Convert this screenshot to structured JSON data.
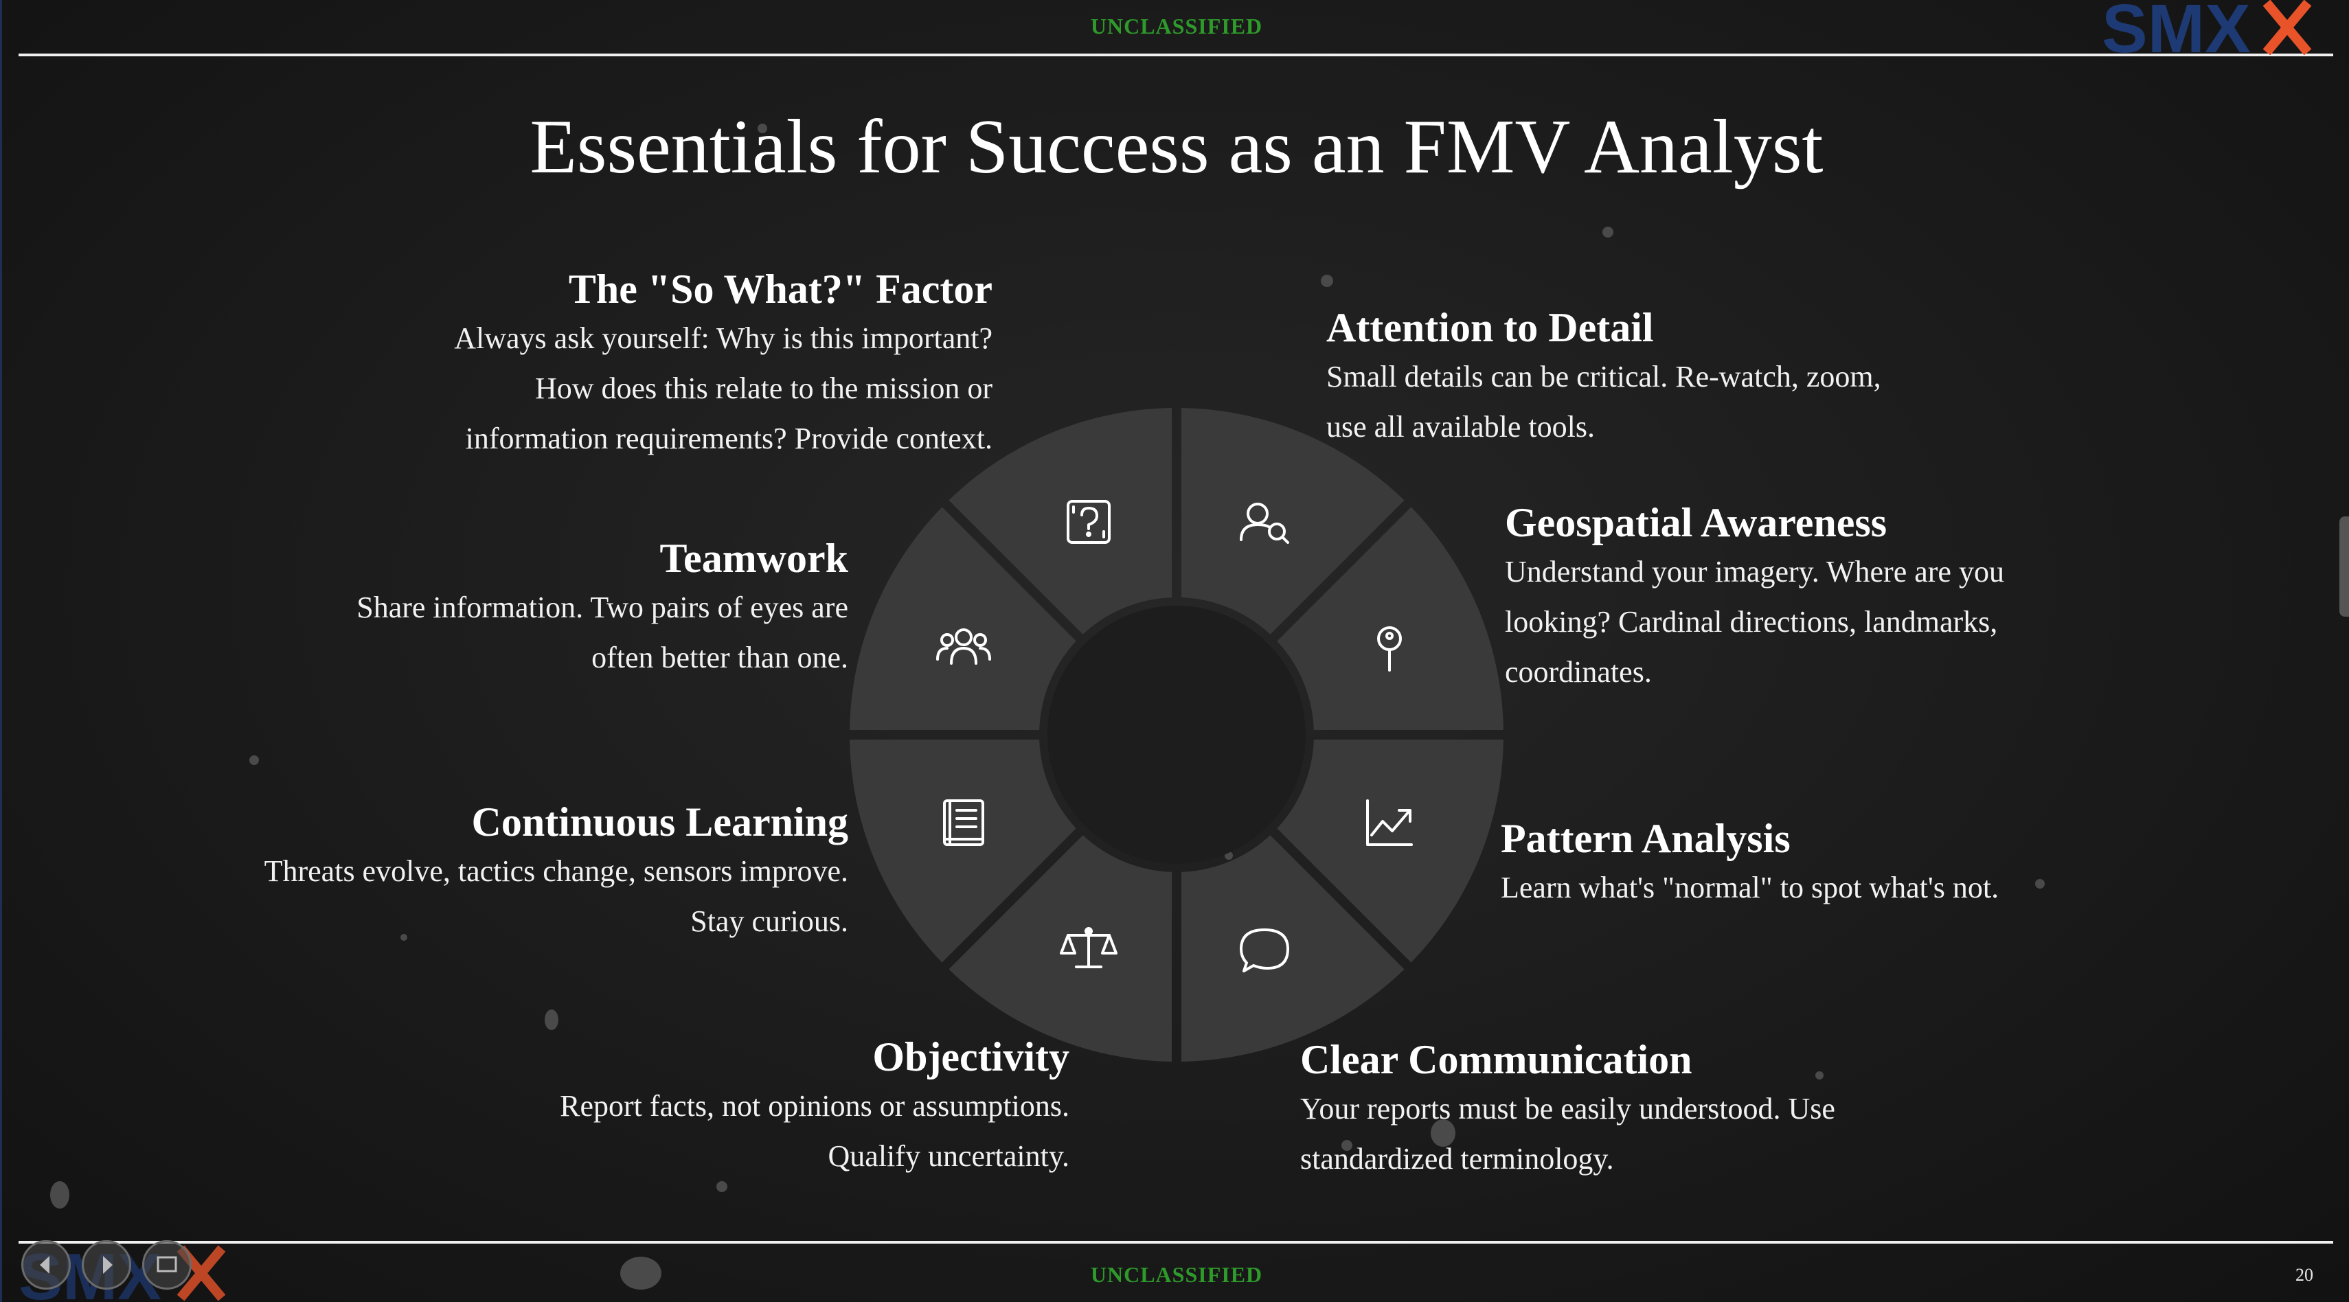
{
  "classification": "UNCLASSIFIED",
  "page_number": "20",
  "logo_text": "SMX",
  "title": "Essentials for Success as an FMV Analyst",
  "colors": {
    "classification_green": "#2e9a2a",
    "segment_gray": "#3a3a3a",
    "logo_blue": "#1e3a74",
    "logo_orange": "#e8532a"
  },
  "items": [
    {
      "heading": "The \"So What?\" Factor",
      "lines": [
        "Always ask yourself: Why is this important?",
        "How does this relate to the mission or",
        "information requirements? Provide context."
      ],
      "icon": "question-box-icon"
    },
    {
      "heading": "Attention to Detail",
      "lines": [
        "Small details can be critical. Re-watch, zoom,",
        "use all available tools."
      ],
      "icon": "person-search-icon"
    },
    {
      "heading": "Geospatial Awareness",
      "lines": [
        "Understand your imagery. Where are you",
        "looking? Cardinal directions, landmarks,",
        "coordinates."
      ],
      "icon": "map-pin-icon"
    },
    {
      "heading": "Pattern Analysis",
      "lines": [
        "Learn what's \"normal\" to spot what's not."
      ],
      "icon": "trend-chart-icon"
    },
    {
      "heading": "Clear Communication",
      "lines": [
        "Your reports must be easily understood. Use",
        "standardized terminology."
      ],
      "icon": "speech-bubble-icon"
    },
    {
      "heading": "Objectivity",
      "lines": [
        "Report facts, not opinions or assumptions.",
        "Qualify uncertainty."
      ],
      "icon": "balance-scale-icon"
    },
    {
      "heading": "Continuous Learning",
      "lines": [
        "Threats evolve, tactics change, sensors improve.",
        "Stay curious."
      ],
      "icon": "book-icon"
    },
    {
      "heading": "Teamwork",
      "lines": [
        "Share information. Two pairs of eyes are",
        "often better than one."
      ],
      "icon": "team-icon"
    }
  ]
}
